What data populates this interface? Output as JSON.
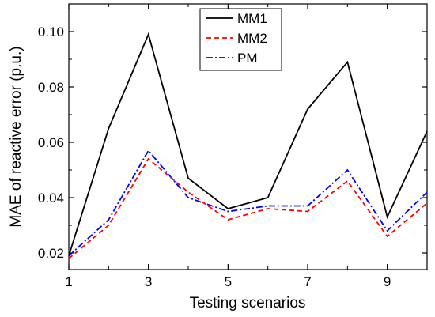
{
  "chart_data": {
    "type": "line",
    "xlabel": "Testing scenarios",
    "ylabel": "MAE of reactive error (p.u.)",
    "xlim": [
      1,
      10
    ],
    "ylim": [
      0.014,
      0.11
    ],
    "x_ticks": [
      1,
      3,
      5,
      7,
      9
    ],
    "y_ticks": [
      0.02,
      0.04,
      0.06,
      0.08,
      0.1
    ],
    "y_tick_labels": [
      "0.02",
      "0.04",
      "0.06",
      "0.08",
      "0.10"
    ],
    "x_minor_ticks": [
      2,
      4,
      6,
      8,
      10
    ],
    "y_minor_ticks": [
      0.03,
      0.05,
      0.07,
      0.09
    ],
    "grid": false,
    "legend_position": "top-center",
    "x": [
      1,
      2,
      3,
      4,
      5,
      6,
      7,
      8,
      9,
      10
    ],
    "series": [
      {
        "name": "MM1",
        "color": "#000000",
        "dash": "solid",
        "values": [
          0.019,
          0.065,
          0.099,
          0.047,
          0.036,
          0.04,
          0.072,
          0.089,
          0.033,
          0.064
        ]
      },
      {
        "name": "MM2",
        "color": "#ff0000",
        "dash": "dashed",
        "values": [
          0.018,
          0.03,
          0.054,
          0.042,
          0.032,
          0.036,
          0.035,
          0.046,
          0.026,
          0.038
        ]
      },
      {
        "name": "PM",
        "color": "#0000ff",
        "dash": "dash-dot",
        "values": [
          0.019,
          0.032,
          0.057,
          0.04,
          0.035,
          0.037,
          0.037,
          0.05,
          0.028,
          0.042
        ]
      }
    ]
  }
}
